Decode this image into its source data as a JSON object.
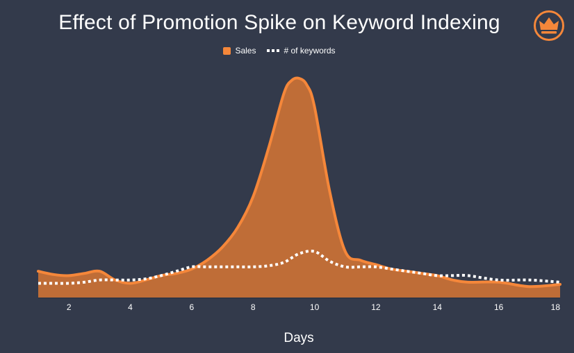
{
  "chart_data": {
    "type": "area",
    "title": "Effect of Promotion Spike on Keyword Indexing",
    "xlabel": "Days",
    "ylabel": "",
    "xlim": [
      1,
      18
    ],
    "ylim": [
      0,
      100
    ],
    "x_ticks": [
      2,
      4,
      6,
      8,
      10,
      12,
      14,
      16,
      18
    ],
    "grid": false,
    "legend_position": "top-center",
    "series": [
      {
        "name": "Sales",
        "style": "filled-area",
        "color": "#f5873a",
        "fill_color": "#bf6d37",
        "x": [
          1,
          1.5,
          2,
          2.5,
          3,
          3.5,
          4,
          4.5,
          5,
          5.5,
          6,
          6.5,
          7,
          7.5,
          8,
          8.5,
          9,
          9.25,
          9.5,
          9.75,
          10,
          10.5,
          11,
          11.5,
          12,
          12.5,
          13,
          13.5,
          14,
          14.5,
          15,
          16,
          17,
          18
        ],
        "values": [
          12,
          10.5,
          10,
          11,
          12,
          8,
          6.5,
          8,
          10,
          11,
          13,
          17,
          23,
          32,
          46,
          68,
          93,
          99,
          100,
          97,
          87,
          48,
          21,
          17,
          15,
          13,
          12,
          11,
          10,
          8,
          7,
          7,
          5,
          6
        ]
      },
      {
        "name": "# of keywords",
        "style": "dotted-line",
        "color": "#ffffff",
        "x": [
          1,
          1.5,
          2,
          2.5,
          3,
          3.5,
          4,
          4.5,
          5,
          5.5,
          6,
          6.5,
          7,
          7.5,
          8,
          8.5,
          9,
          9.5,
          10,
          10.5,
          11,
          11.5,
          12,
          12.5,
          13,
          13.5,
          14,
          14.5,
          15,
          16,
          17,
          18
        ],
        "values": [
          6.5,
          6.5,
          6.5,
          7,
          8,
          8,
          8,
          8.5,
          10,
          12,
          14,
          14,
          14,
          14,
          14,
          14.5,
          16,
          20,
          21,
          16.5,
          14,
          14,
          14,
          13,
          12,
          11,
          10,
          10,
          10,
          8,
          8,
          7
        ]
      }
    ]
  },
  "logo": {
    "icon": "crown-icon",
    "color": "#f5873a"
  }
}
